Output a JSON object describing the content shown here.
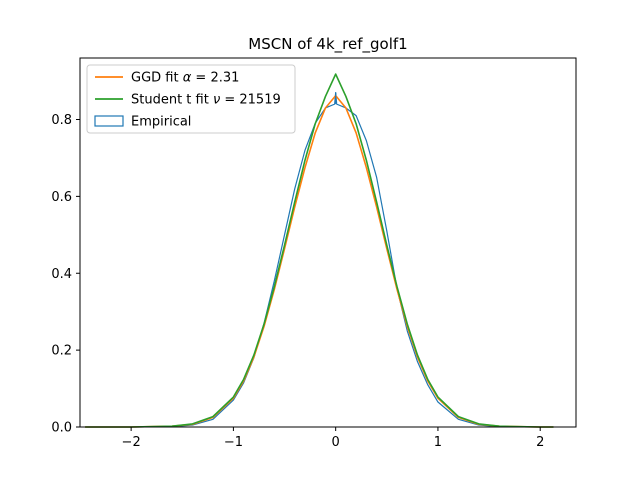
{
  "chart_data": {
    "type": "line",
    "title": "MSCN of 4k_ref_golf1",
    "xlabel": "",
    "ylabel": "",
    "xlim": [
      -2.5,
      2.35
    ],
    "ylim": [
      0,
      0.96
    ],
    "xticks": [
      -2,
      -1,
      0,
      1,
      2
    ],
    "yticks": [
      0.0,
      0.2,
      0.4,
      0.6,
      0.8
    ],
    "xtick_labels": [
      "−2",
      "−1",
      "0",
      "1",
      "2"
    ],
    "ytick_labels": [
      "0.0",
      "0.2",
      "0.4",
      "0.6",
      "0.8"
    ],
    "grid": false,
    "legend_position": "top-left",
    "legend": [
      {
        "label_prefix": "GGD fit ",
        "symbol": "α",
        "label_suffix": " = 2.31",
        "color": "#ff7f0e",
        "kind": "line"
      },
      {
        "label_prefix": "Student t fit ",
        "symbol": "ν",
        "label_suffix": " = 21519",
        "color": "#2ca02c",
        "kind": "line"
      },
      {
        "label_prefix": "Empirical",
        "symbol": "",
        "label_suffix": "",
        "color": "#1f77b4",
        "kind": "patch"
      }
    ],
    "series": [
      {
        "name": "GGD fit α = 2.31",
        "color": "#ff7f0e",
        "x": [
          -2.45,
          -2.0,
          -1.6,
          -1.4,
          -1.2,
          -1.0,
          -0.9,
          -0.8,
          -0.7,
          -0.6,
          -0.5,
          -0.4,
          -0.3,
          -0.2,
          -0.1,
          0.0,
          0.1,
          0.2,
          0.3,
          0.4,
          0.5,
          0.6,
          0.7,
          0.8,
          0.9,
          1.0,
          1.2,
          1.4,
          1.6,
          2.0,
          2.13
        ],
        "y": [
          0.0,
          0.0,
          0.002,
          0.007,
          0.025,
          0.075,
          0.12,
          0.182,
          0.262,
          0.358,
          0.464,
          0.573,
          0.675,
          0.765,
          0.83,
          0.862,
          0.83,
          0.765,
          0.675,
          0.573,
          0.464,
          0.358,
          0.262,
          0.182,
          0.12,
          0.075,
          0.025,
          0.007,
          0.002,
          0.0,
          0.0
        ]
      },
      {
        "name": "Student t fit ν = 21519",
        "color": "#2ca02c",
        "x": [
          -2.45,
          -2.0,
          -1.6,
          -1.4,
          -1.2,
          -1.0,
          -0.9,
          -0.8,
          -0.7,
          -0.6,
          -0.5,
          -0.4,
          -0.3,
          -0.2,
          -0.1,
          0.0,
          0.1,
          0.2,
          0.3,
          0.4,
          0.5,
          0.6,
          0.7,
          0.8,
          0.9,
          1.0,
          1.2,
          1.4,
          1.6,
          2.0,
          2.13
        ],
        "y": [
          0.0,
          0.0,
          0.002,
          0.008,
          0.027,
          0.078,
          0.124,
          0.187,
          0.268,
          0.365,
          0.473,
          0.586,
          0.694,
          0.789,
          0.86,
          0.918,
          0.86,
          0.789,
          0.694,
          0.586,
          0.473,
          0.365,
          0.268,
          0.187,
          0.124,
          0.078,
          0.027,
          0.008,
          0.002,
          0.0,
          0.0
        ]
      },
      {
        "name": "Empirical",
        "color": "#1f77b4",
        "x": [
          -2.45,
          -2.0,
          -1.6,
          -1.4,
          -1.2,
          -1.0,
          -0.9,
          -0.8,
          -0.7,
          -0.6,
          -0.5,
          -0.4,
          -0.3,
          -0.2,
          -0.1,
          -0.01,
          0.0,
          0.01,
          0.1,
          0.2,
          0.3,
          0.4,
          0.5,
          0.6,
          0.7,
          0.8,
          0.9,
          1.0,
          1.2,
          1.4,
          1.6,
          2.0,
          2.13
        ],
        "y": [
          0.0,
          0.0,
          0.001,
          0.005,
          0.02,
          0.07,
          0.115,
          0.18,
          0.27,
          0.38,
          0.5,
          0.62,
          0.72,
          0.79,
          0.83,
          0.84,
          0.87,
          0.84,
          0.83,
          0.81,
          0.745,
          0.65,
          0.51,
          0.36,
          0.25,
          0.17,
          0.11,
          0.065,
          0.02,
          0.005,
          0.001,
          0.0,
          0.0
        ]
      }
    ]
  }
}
